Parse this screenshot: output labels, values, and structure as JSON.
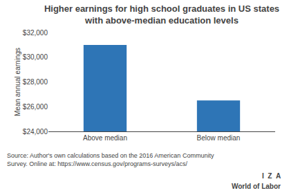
{
  "chart_data": {
    "type": "bar",
    "title": "Higher earnings for high school graduates in US states\nwith above-median education levels",
    "categories": [
      "Above median",
      "Below median"
    ],
    "values": [
      31000,
      26500
    ],
    "color": "#2E75B6",
    "ylabel": "Mean annual earnings",
    "ylim": [
      24000,
      32000
    ],
    "yticks": [
      {
        "value": 24000,
        "label": "$24,000"
      },
      {
        "value": 26000,
        "label": "$26,000"
      },
      {
        "value": 28000,
        "label": "$28,000"
      },
      {
        "value": 30000,
        "label": "$30,000"
      },
      {
        "value": 32000,
        "label": "$32,000"
      }
    ],
    "grid": false,
    "annotations": [
      "Source: Author's own calculations based on the 2016 American Community\nSurvey. Online at: https://www.census.gov/programs-surveys/acs/",
      "I  Z  A",
      "World of Labor"
    ]
  }
}
